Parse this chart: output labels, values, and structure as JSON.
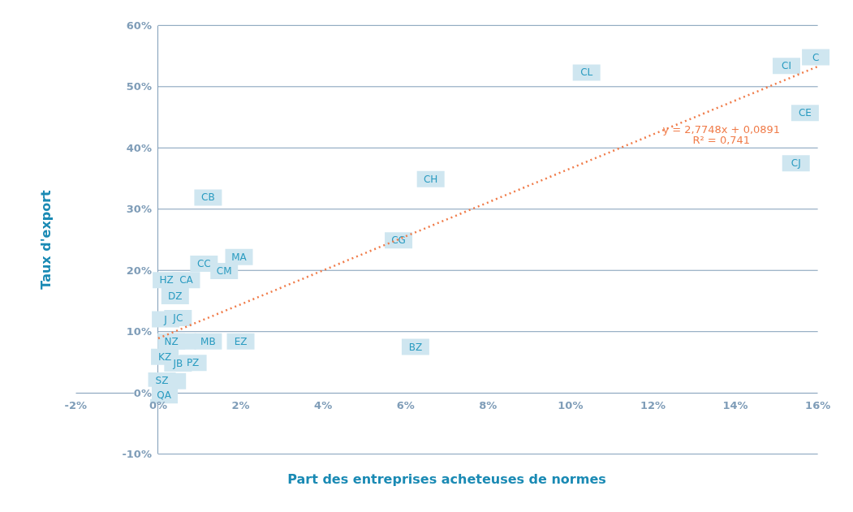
{
  "chart_data": {
    "type": "scatter",
    "xlabel": "Part des entreprises acheteuses de normes",
    "ylabel": "Taux d'export",
    "xlim": [
      -2,
      16
    ],
    "ylim": [
      -10,
      60
    ],
    "xticks": [
      {
        "value": -2,
        "label": "-2%"
      },
      {
        "value": 0,
        "label": "0%"
      },
      {
        "value": 2,
        "label": "2%"
      },
      {
        "value": 4,
        "label": "4%"
      },
      {
        "value": 6,
        "label": "6%"
      },
      {
        "value": 8,
        "label": "8%"
      },
      {
        "value": 10,
        "label": "10%"
      },
      {
        "value": 12,
        "label": "12%"
      },
      {
        "value": 14,
        "label": "14%"
      },
      {
        "value": 16,
        "label": "16%"
      }
    ],
    "yticks": [
      {
        "value": -10,
        "label": "-10%"
      },
      {
        "value": 0,
        "label": "0%"
      },
      {
        "value": 10,
        "label": "10%"
      },
      {
        "value": 20,
        "label": "20%"
      },
      {
        "value": 30,
        "label": "30%"
      },
      {
        "value": 40,
        "label": "40%"
      },
      {
        "value": 50,
        "label": "50%"
      },
      {
        "value": 60,
        "label": "60%"
      }
    ],
    "grid": "y",
    "series": [
      {
        "marker": "square",
        "color": "#cfe6f0",
        "x": [
          10.39,
          15.24,
          15.95,
          15.69,
          15.47,
          6.61,
          1.21,
          5.83,
          1.96,
          1.11,
          1.6,
          0.2,
          0.68,
          0.41,
          0.18,
          0.48,
          0.32,
          0.59,
          1.21,
          2.0,
          6.24,
          0.16,
          0.48,
          0.84,
          0.09,
          0.34,
          0.14
        ],
        "values": [
          52.3,
          53.4,
          54.8,
          45.7,
          37.5,
          34.9,
          31.9,
          24.9,
          22.2,
          21.1,
          19.9,
          18.4,
          18.4,
          15.8,
          12.0,
          12.2,
          8.4,
          8.4,
          8.4,
          8.4,
          7.5,
          5.9,
          4.8,
          4.9,
          2.0,
          1.9,
          -0.4
        ],
        "value_labels": [
          "CL",
          "CI",
          "C",
          "CE",
          "CJ",
          "CH",
          "CB",
          "CG",
          "MA",
          "CC",
          "CM",
          "HZ",
          "CA",
          "DZ",
          "J",
          "JC",
          "NZ",
          null,
          "MB",
          "EZ",
          "BZ",
          "KZ",
          "JB",
          "PZ",
          "SZ",
          null,
          "QA"
        ]
      },
      {
        "type": "line",
        "color": "#f07c4a",
        "line_style": "dotted",
        "x": [
          0,
          16
        ],
        "values": [
          8.9,
          53.3
        ]
      }
    ],
    "annotations": [
      "y = 2,7748x + 0,0891",
      "R² = 0,741"
    ]
  }
}
